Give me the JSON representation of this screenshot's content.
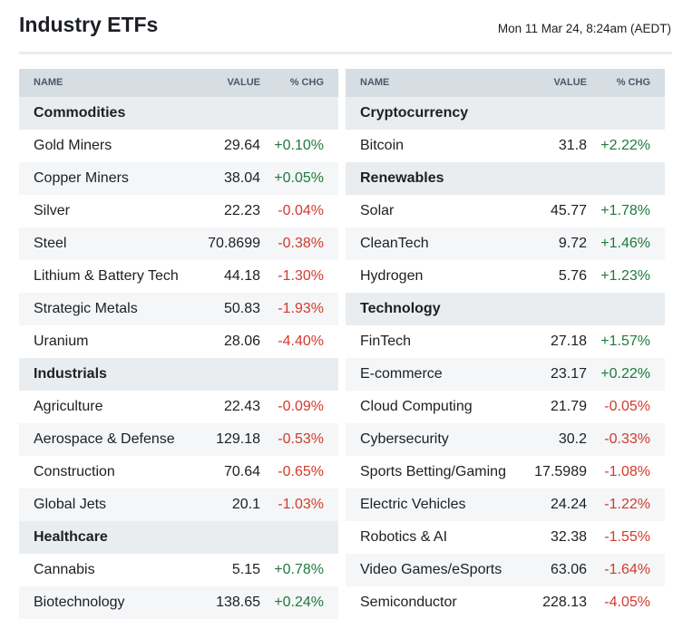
{
  "header": {
    "title": "Industry ETFs",
    "timestamp": "Mon 11 Mar 24, 8:24am (AEDT)"
  },
  "tables": [
    {
      "columns": [
        "NAME",
        "VALUE",
        "% CHG"
      ],
      "groups": [
        {
          "name": "Commodities",
          "rows": [
            [
              "Gold Miners",
              "29.64",
              "+0.10%"
            ],
            [
              "Copper Miners",
              "38.04",
              "+0.05%"
            ],
            [
              "Silver",
              "22.23",
              "-0.04%"
            ],
            [
              "Steel",
              "70.8699",
              "-0.38%"
            ],
            [
              "Lithium & Battery Tech",
              "44.18",
              "-1.30%"
            ],
            [
              "Strategic Metals",
              "50.83",
              "-1.93%"
            ],
            [
              "Uranium",
              "28.06",
              "-4.40%"
            ]
          ]
        },
        {
          "name": "Industrials",
          "rows": [
            [
              "Agriculture",
              "22.43",
              "-0.09%"
            ],
            [
              "Aerospace & Defense",
              "129.18",
              "-0.53%"
            ],
            [
              "Construction",
              "70.64",
              "-0.65%"
            ],
            [
              "Global Jets",
              "20.1",
              "-1.03%"
            ]
          ]
        },
        {
          "name": "Healthcare",
          "rows": [
            [
              "Cannabis",
              "5.15",
              "+0.78%"
            ],
            [
              "Biotechnology",
              "138.65",
              "+0.24%"
            ]
          ]
        }
      ]
    },
    {
      "columns": [
        "NAME",
        "VALUE",
        "% CHG"
      ],
      "groups": [
        {
          "name": "Cryptocurrency",
          "rows": [
            [
              "Bitcoin",
              "31.8",
              "+2.22%"
            ]
          ]
        },
        {
          "name": "Renewables",
          "rows": [
            [
              "Solar",
              "45.77",
              "+1.78%"
            ],
            [
              "CleanTech",
              "9.72",
              "+1.46%"
            ],
            [
              "Hydrogen",
              "5.76",
              "+1.23%"
            ]
          ]
        },
        {
          "name": "Technology",
          "rows": [
            [
              "FinTech",
              "27.18",
              "+1.57%"
            ],
            [
              "E-commerce",
              "23.17",
              "+0.22%"
            ],
            [
              "Cloud Computing",
              "21.79",
              "-0.05%"
            ],
            [
              "Cybersecurity",
              "30.2",
              "-0.33%"
            ],
            [
              "Sports Betting/Gaming",
              "17.5989",
              "-1.08%"
            ],
            [
              "Electric Vehicles",
              "24.24",
              "-1.22%"
            ],
            [
              "Robotics & AI",
              "32.38",
              "-1.55%"
            ],
            [
              "Video Games/eSports",
              "63.06",
              "-1.64%"
            ],
            [
              "Semiconductor",
              "228.13",
              "-4.05%"
            ]
          ]
        }
      ]
    }
  ]
}
